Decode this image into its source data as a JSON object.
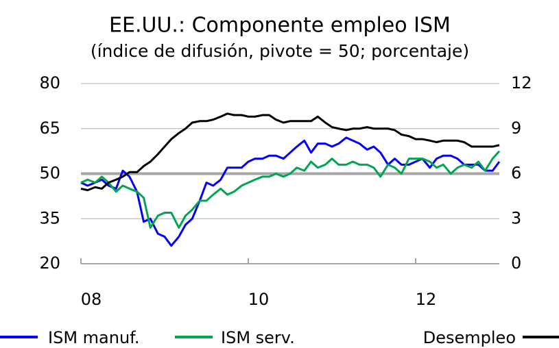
{
  "chart_data": {
    "type": "line",
    "title": "EE.UU.: Componente empleo ISM",
    "subtitle": "(índice de difusión, pivote = 50; porcentaje)",
    "x": [
      2008.0,
      2008.08,
      2008.17,
      2008.25,
      2008.33,
      2008.42,
      2008.5,
      2008.58,
      2008.67,
      2008.75,
      2008.83,
      2008.92,
      2009.0,
      2009.08,
      2009.17,
      2009.25,
      2009.33,
      2009.42,
      2009.5,
      2009.58,
      2009.67,
      2009.75,
      2009.83,
      2009.92,
      2010.0,
      2010.08,
      2010.17,
      2010.25,
      2010.33,
      2010.42,
      2010.5,
      2010.58,
      2010.67,
      2010.75,
      2010.83,
      2010.92,
      2011.0,
      2011.08,
      2011.17,
      2011.25,
      2011.33,
      2011.42,
      2011.5,
      2011.58,
      2011.67,
      2011.75,
      2011.83,
      2011.92,
      2012.0,
      2012.08,
      2012.17,
      2012.25,
      2012.33,
      2012.42,
      2012.5,
      2012.58,
      2012.67,
      2012.75,
      2012.83,
      2012.92,
      2013.0
    ],
    "series": [
      {
        "name": "ISM manuf.",
        "color": "#0000ff",
        "values": [
          47,
          46,
          47,
          48,
          46,
          45,
          51,
          49,
          44,
          34,
          35,
          30,
          29,
          26,
          29,
          33,
          35,
          41,
          47,
          46,
          48,
          52,
          52,
          52,
          54,
          55,
          55,
          56,
          56,
          55,
          57,
          59,
          61,
          57,
          60,
          60,
          59,
          60,
          62,
          61,
          60,
          58,
          59,
          57,
          53,
          55,
          53,
          53,
          54,
          55,
          52,
          55,
          56,
          56,
          55,
          53,
          53,
          53,
          51,
          51,
          54
        ]
      },
      {
        "name": "ISM serv.",
        "color": "#00a550",
        "values": [
          47,
          48,
          47,
          49,
          47,
          44,
          46,
          45,
          44,
          42,
          32,
          36,
          37,
          37,
          32,
          36,
          38,
          41,
          41,
          43,
          45,
          43,
          44,
          46,
          47,
          48,
          49,
          49,
          50,
          49,
          50,
          52,
          51,
          54,
          52,
          53,
          55,
          53,
          53,
          54,
          53,
          53,
          52,
          49,
          53,
          52,
          50,
          55,
          55,
          55,
          54,
          52,
          53,
          50,
          52,
          53,
          52,
          54,
          51,
          55,
          57.5
        ]
      },
      {
        "name": "Desempleo",
        "color": "#000000",
        "axis": "y2",
        "values": [
          5.0,
          4.9,
          5.1,
          5.0,
          5.4,
          5.6,
          5.8,
          6.1,
          6.1,
          6.5,
          6.8,
          7.3,
          7.8,
          8.3,
          8.7,
          9.0,
          9.4,
          9.5,
          9.5,
          9.6,
          9.8,
          10.0,
          9.9,
          9.9,
          9.8,
          9.8,
          9.9,
          9.9,
          9.6,
          9.4,
          9.5,
          9.5,
          9.5,
          9.5,
          9.8,
          9.4,
          9.1,
          9.0,
          8.9,
          9.0,
          9.0,
          9.1,
          9.0,
          9.0,
          9.0,
          8.9,
          8.6,
          8.5,
          8.3,
          8.3,
          8.2,
          8.1,
          8.2,
          8.2,
          8.2,
          8.1,
          7.8,
          7.8,
          7.8,
          7.8,
          7.9
        ]
      }
    ],
    "xlim": [
      2008,
      2013
    ],
    "xticks": [
      {
        "value": 2008,
        "label": "08"
      },
      {
        "value": 2010,
        "label": "10"
      },
      {
        "value": 2012,
        "label": "12"
      }
    ],
    "ylim": [
      20,
      80
    ],
    "yticks": [
      20,
      35,
      50,
      65,
      80
    ],
    "y2lim": [
      0,
      12
    ],
    "y2ticks": [
      0,
      3,
      6,
      9,
      12
    ],
    "reference_line": 50,
    "grid": true
  }
}
